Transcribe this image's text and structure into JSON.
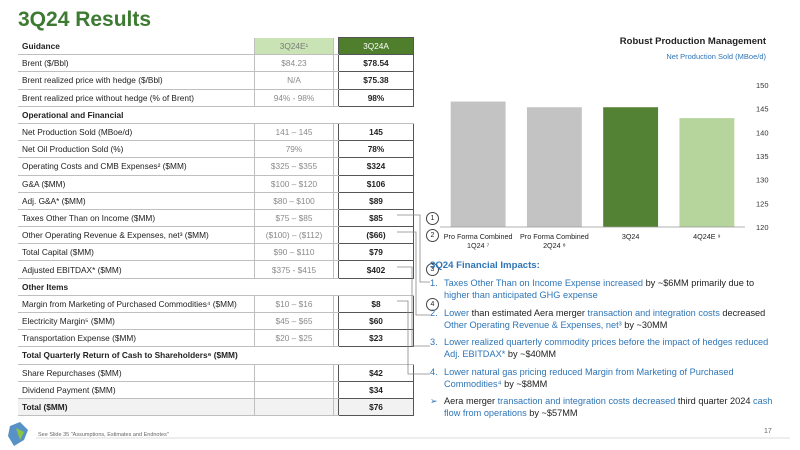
{
  "header": {
    "title": "3Q24 Results"
  },
  "table": {
    "header": [
      "Guidance",
      "3Q24E¹",
      "3Q24A"
    ],
    "rows": [
      {
        "cells": [
          "Brent ($/Bbl)",
          "$84.23",
          "$78.54"
        ]
      },
      {
        "cells": [
          "Brent realized price with hedge ($/Bbl)",
          "N/A",
          "$75.38"
        ]
      },
      {
        "cells": [
          "Brent realized price without hedge (% of Brent)",
          "94% - 98%",
          "98%"
        ]
      },
      {
        "cells": [
          "Operational and Financial"
        ],
        "section": true
      },
      {
        "cells": [
          "Net Production Sold (MBoe/d)",
          "141 – 145",
          "145"
        ]
      },
      {
        "cells": [
          "Net Oil Production Sold (%)",
          "79%",
          "78%"
        ]
      },
      {
        "cells": [
          "Operating Costs and CMB Expenses² ($MM)",
          "$325 – $355",
          "$324"
        ]
      },
      {
        "cells": [
          "G&A ($MM)",
          "$100 – $120",
          "$106"
        ]
      },
      {
        "cells": [
          "Adj. G&A* ($MM)",
          "$80 – $100",
          "$89"
        ]
      },
      {
        "cells": [
          "Taxes Other Than on Income ($MM)",
          "$75 – $85",
          "$85"
        ],
        "note": "1"
      },
      {
        "cells": [
          "Other Operating Revenue & Expenses, net³ ($MM)",
          "($100) – ($112)",
          "($66)"
        ],
        "note": "2"
      },
      {
        "cells": [
          "Total Capital ($MM)",
          "$90 – $110",
          "$79"
        ]
      },
      {
        "cells": [
          "Adjusted EBITDAX* ($MM)",
          "$375 - $415",
          "$402"
        ],
        "note": "3"
      },
      {
        "cells": [
          "Other Items"
        ],
        "section": true
      },
      {
        "cells": [
          "Margin from Marketing of Purchased Commodities⁴ ($MM)",
          "$10 – $16",
          "$8"
        ],
        "note": "4"
      },
      {
        "cells": [
          "Electricity Margin⁵ ($MM)",
          "$45 – $65",
          "$60"
        ]
      },
      {
        "cells": [
          "Transportation Expense ($MM)",
          "$20 – $25",
          "$23"
        ]
      },
      {
        "cells": [
          "Total Quarterly Return of Cash to Shareholders⁶ ($MM)"
        ],
        "section": true,
        "strong": true
      },
      {
        "cells": [
          "Share Repurchases ($MM)",
          "",
          "$42"
        ]
      },
      {
        "cells": [
          "Dividend Payment ($MM)",
          "",
          "$34"
        ]
      },
      {
        "cells": [
          "Total ($MM)",
          "",
          "$76"
        ],
        "total": true
      }
    ]
  },
  "chart_data": {
    "type": "bar",
    "title": "Robust Production Management",
    "subtitle": "Net Production Sold (MBoe/d)",
    "categories": [
      "Pro Forma Combined 1Q24 ⁷",
      "Pro Forma Combined 2Q24 ⁸",
      "3Q24",
      "4Q24E ⁹"
    ],
    "values": [
      146.5,
      145.3,
      145.3,
      143
    ],
    "colors": [
      "#c3c3c3",
      "#c3c3c3",
      "#548235",
      "#b5d59c"
    ],
    "ylim": [
      120,
      150
    ],
    "yticks": [
      120,
      125,
      130,
      135,
      140,
      145,
      150
    ]
  },
  "impacts": {
    "title": "3Q24 Financial Impacts:",
    "items": [
      {
        "marker": "1.",
        "parts": [
          {
            "text": "Taxes Other Than on Income Expense increased",
            "hl": true
          },
          {
            "text": " by ~$6MM primarily due to "
          },
          {
            "text": "higher than anticipated GHG expense",
            "hl": true
          }
        ]
      },
      {
        "marker": "2.",
        "parts": [
          {
            "text": "Lower",
            "hl": true
          },
          {
            "text": " than estimated Aera merger "
          },
          {
            "text": "transaction and integration costs",
            "hl": true
          },
          {
            "text": " decreased "
          },
          {
            "text": "Other Operating  Revenue & Expenses, net³",
            "hl": true
          },
          {
            "text": " by ~30MM"
          }
        ]
      },
      {
        "marker": "3.",
        "parts": [
          {
            "text": "Lower realized quarterly commodity prices before the impact of hedges reduced Adj. EBITDAX*",
            "hl": true
          },
          {
            "text": " by ~$40MM"
          }
        ]
      },
      {
        "marker": "4.",
        "parts": [
          {
            "text": "Lower natural gas pricing reduced Margin from Marketing of Purchased Commodities⁴",
            "hl": true
          },
          {
            "text": " by ~$8MM"
          }
        ]
      },
      {
        "marker": "➢",
        "parts": [
          {
            "text": "Aera merger "
          },
          {
            "text": "transaction and integration costs decreased",
            "hl": true
          },
          {
            "text": " third quarter 2024 "
          },
          {
            "text": "cash flow from operations",
            "hl": true
          },
          {
            "text": " by ~$57MM"
          }
        ]
      }
    ]
  },
  "footer": {
    "note": "See Slide 35 \"Assumptions, Estimates and Endnotes\"",
    "page": "17"
  }
}
